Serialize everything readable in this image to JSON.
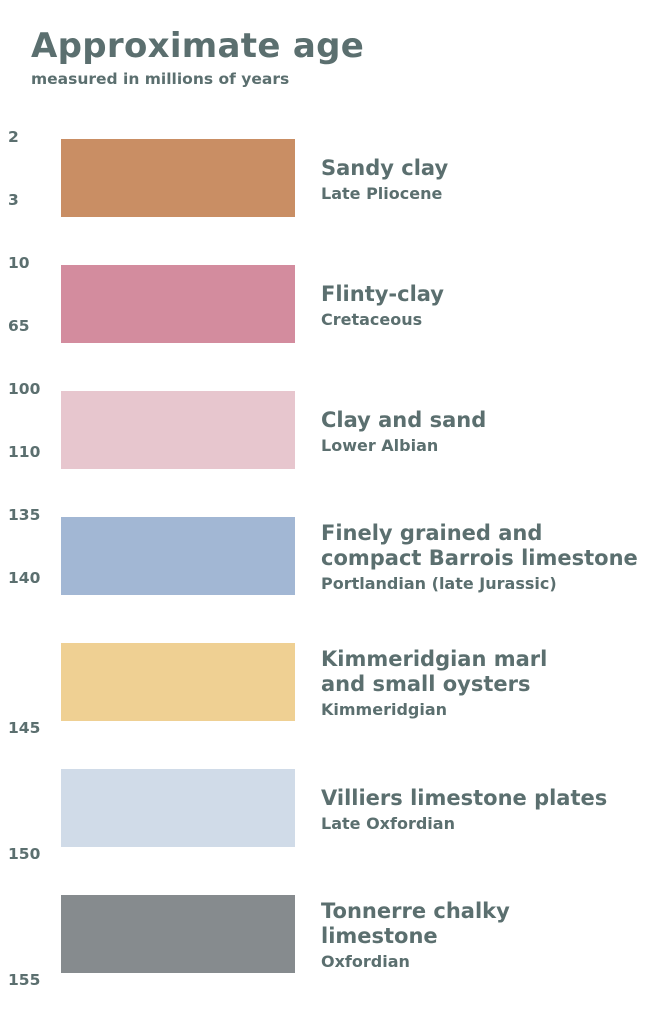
{
  "title": "Approximate age",
  "subtitle": "measured in millions of years",
  "layers": [
    {
      "name": [
        "Sandy clay"
      ],
      "period": "Late Pliocene",
      "color": "#c98e64",
      "age_top": "2",
      "age_bottom": "3"
    },
    {
      "name": [
        "Flinty-clay"
      ],
      "period": "Cretaceous",
      "color": "#d38c9e",
      "age_top": "10",
      "age_bottom": "65"
    },
    {
      "name": [
        "Clay and sand"
      ],
      "period": "Lower Albian",
      "color": "#e7c6ce",
      "age_top": "100",
      "age_bottom": "110"
    },
    {
      "name": [
        "Finely grained and",
        "compact Barrois limestone"
      ],
      "period": "Portlandian (late Jurassic)",
      "color": "#a2b7d4",
      "age_top": "135",
      "age_bottom": "140"
    },
    {
      "name": [
        "Kimmeridgian marl",
        "and small oysters"
      ],
      "period": "Kimmeridgian",
      "color": "#efd093",
      "age_top": "",
      "age_bottom": "145"
    },
    {
      "name": [
        "Villiers limestone plates"
      ],
      "period": "Late Oxfordian",
      "color": "#d0dbe8",
      "age_top": "",
      "age_bottom": "150"
    },
    {
      "name": [
        "Tonnerre chalky",
        "limestone"
      ],
      "period": "Oxfordian",
      "color": "#868b8e",
      "age_top": "",
      "age_bottom": "155"
    }
  ]
}
